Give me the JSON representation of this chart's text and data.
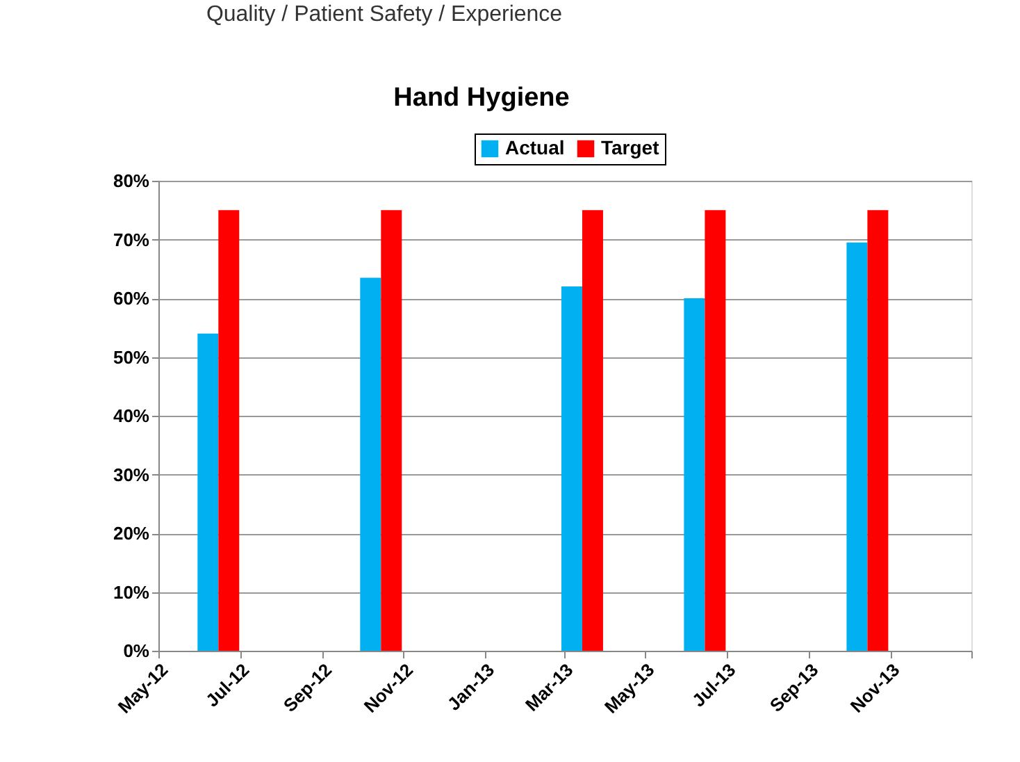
{
  "chart_data": {
    "type": "bar",
    "title": "Hand Hygiene",
    "annotations": [
      "Quality / Patient Safety / Experience"
    ],
    "x": [
      "2012-06-15",
      "2012-10-15",
      "2013-03-15",
      "2013-06-15",
      "2013-10-15"
    ],
    "series": [
      {
        "name": "Actual",
        "color": "#00b0f0",
        "values": [
          54,
          63.5,
          62,
          60,
          69.5
        ]
      },
      {
        "name": "Target",
        "color": "#ff0000",
        "values": [
          75,
          75,
          75,
          75,
          75
        ]
      }
    ],
    "xlim": [
      "2012-05-01",
      "2014-01-01"
    ],
    "xticks": [
      {
        "value": "2012-05-01",
        "label": "May-12"
      },
      {
        "value": "2012-07-01",
        "label": "Jul-12"
      },
      {
        "value": "2012-09-01",
        "label": "Sep-12"
      },
      {
        "value": "2012-11-01",
        "label": "Nov-12"
      },
      {
        "value": "2013-01-01",
        "label": "Jan-13"
      },
      {
        "value": "2013-03-01",
        "label": "Mar-13"
      },
      {
        "value": "2013-05-01",
        "label": "May-13"
      },
      {
        "value": "2013-07-01",
        "label": "Jul-13"
      },
      {
        "value": "2013-09-01",
        "label": "Sep-13"
      },
      {
        "value": "2013-11-01",
        "label": "Nov-13"
      },
      {
        "value": "2014-01-01",
        "label": null
      }
    ],
    "ylim": [
      0,
      80
    ],
    "yticks": [
      {
        "value": 0,
        "label": "0%"
      },
      {
        "value": 10,
        "label": "10%"
      },
      {
        "value": 20,
        "label": "20%"
      },
      {
        "value": 30,
        "label": "30%"
      },
      {
        "value": 40,
        "label": "40%"
      },
      {
        "value": 50,
        "label": "50%"
      },
      {
        "value": 60,
        "label": "60%"
      },
      {
        "value": 70,
        "label": "70%"
      },
      {
        "value": 80,
        "label": "80%"
      }
    ],
    "grid": "y",
    "legend": "top"
  }
}
